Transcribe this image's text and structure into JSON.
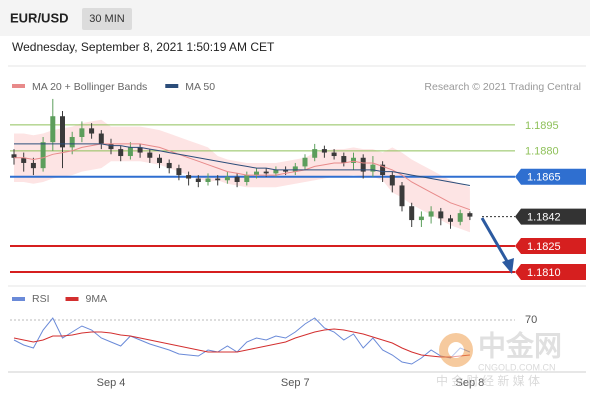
{
  "header": {
    "symbol": "EUR/USD",
    "interval": "30 MIN",
    "timestamp": "Wednesday, September 8, 2021 1:50:19 AM CET"
  },
  "chart_data": [
    {
      "type": "candlestick",
      "source": "Research © 2021 Trading Central",
      "categories": [
        null,
        null,
        null,
        null,
        null,
        null,
        null,
        null,
        null,
        null,
        "Sep 4",
        null,
        null,
        null,
        null,
        null,
        null,
        null,
        null,
        null,
        null,
        null,
        null,
        null,
        null,
        null,
        null,
        null,
        null,
        "Sep 7",
        null,
        null,
        null,
        null,
        null,
        null,
        null,
        null,
        null,
        null,
        null,
        null,
        null,
        null,
        null,
        null,
        null,
        "Sep 8"
      ],
      "open": [
        1.1878,
        1.1876,
        1.1873,
        1.187,
        1.1885,
        1.19,
        1.1882,
        1.1888,
        1.1893,
        1.189,
        1.1884,
        1.1881,
        1.1877,
        1.1882,
        1.1879,
        1.1876,
        1.1873,
        1.187,
        1.1866,
        1.1864,
        1.1862,
        1.1864,
        1.1863,
        1.1865,
        1.1862,
        1.1866,
        1.1868,
        1.1867,
        1.1869,
        1.1868,
        1.1871,
        1.1876,
        1.1881,
        1.1879,
        1.1877,
        1.1873,
        1.1876,
        1.1868,
        1.1872,
        1.1866,
        1.186,
        1.1848,
        1.184,
        1.1842,
        1.1845,
        1.1841,
        1.1839,
        1.1844
      ],
      "high": [
        1.1881,
        1.1879,
        1.1876,
        1.1888,
        1.191,
        1.1903,
        1.1891,
        1.1897,
        1.1896,
        1.1892,
        1.1887,
        1.1883,
        1.1885,
        1.1884,
        1.1881,
        1.1878,
        1.1875,
        1.1872,
        1.1868,
        1.1866,
        1.1867,
        1.1866,
        1.1868,
        1.1867,
        1.1868,
        1.187,
        1.187,
        1.1871,
        1.1871,
        1.1873,
        1.1878,
        1.1884,
        1.1883,
        1.1881,
        1.1879,
        1.1879,
        1.1878,
        1.1877,
        1.1874,
        1.1868,
        1.1862,
        1.185,
        1.1845,
        1.1848,
        1.1847,
        1.1843,
        1.1846,
        1.1845
      ],
      "low": [
        1.1872,
        1.1868,
        1.1866,
        1.1868,
        1.188,
        1.187,
        1.1878,
        1.1885,
        1.1887,
        1.1881,
        1.1878,
        1.1874,
        1.1875,
        1.1876,
        1.1873,
        1.187,
        1.1867,
        1.1863,
        1.186,
        1.1859,
        1.186,
        1.186,
        1.1861,
        1.1859,
        1.186,
        1.1864,
        1.1865,
        1.1865,
        1.1866,
        1.1866,
        1.1869,
        1.1874,
        1.1876,
        1.1875,
        1.1871,
        1.1869,
        1.1864,
        1.1865,
        1.1862,
        1.1856,
        1.1845,
        1.1836,
        1.1836,
        1.1838,
        1.1837,
        1.1835,
        1.1837,
        1.184
      ],
      "close": [
        1.1876,
        1.1873,
        1.187,
        1.1885,
        1.19,
        1.1882,
        1.1888,
        1.1893,
        1.189,
        1.1884,
        1.1881,
        1.1877,
        1.1882,
        1.1879,
        1.1876,
        1.1873,
        1.187,
        1.1866,
        1.1864,
        1.1862,
        1.1864,
        1.1863,
        1.1865,
        1.1862,
        1.1866,
        1.1868,
        1.1867,
        1.1869,
        1.1868,
        1.1871,
        1.1876,
        1.1881,
        1.1879,
        1.1877,
        1.1873,
        1.1876,
        1.1868,
        1.1872,
        1.1866,
        1.186,
        1.1848,
        1.184,
        1.1842,
        1.1845,
        1.1841,
        1.1839,
        1.1844,
        1.1842
      ],
      "up_color": "#5c9e5c",
      "down_color": "#3a3a3a",
      "series": [
        {
          "name": "MA 20 + Bollinger Bands",
          "color": "#e88a8a",
          "band_color": "#fde4e4",
          "values": [
            1.1876,
            1.1876,
            1.1875,
            1.1876,
            1.1878,
            1.1879,
            1.188,
            1.1882,
            1.1883,
            1.1884,
            1.1884,
            1.1884,
            1.1884,
            1.1884,
            1.1883,
            1.1882,
            1.188,
            1.1878,
            1.1876,
            1.1874,
            1.1872,
            1.187,
            1.1868,
            1.1867,
            1.1866,
            1.1866,
            1.1866,
            1.1866,
            1.1867,
            1.1868,
            1.1869,
            1.1871,
            1.1872,
            1.1873,
            1.1873,
            1.1874,
            1.1873,
            1.1873,
            1.1871,
            1.1869,
            1.1866,
            1.1862,
            1.1859,
            1.1856,
            1.1853,
            1.185,
            1.1848,
            1.1846
          ],
          "upper": [
            1.189,
            1.189,
            1.1889,
            1.189,
            1.1892,
            1.1893,
            1.1894,
            1.1896,
            1.1897,
            1.1898,
            1.1894,
            1.1894,
            1.1894,
            1.1894,
            1.1893,
            1.1892,
            1.189,
            1.1888,
            1.1886,
            1.1884,
            1.1882,
            1.1877,
            1.1875,
            1.1874,
            1.1873,
            1.1873,
            1.1873,
            1.1873,
            1.1874,
            1.1875,
            1.1876,
            1.1879,
            1.188,
            1.1881,
            1.1881,
            1.1882,
            1.1881,
            1.1881,
            1.1879,
            1.1882,
            1.1879,
            1.1875,
            1.1872,
            1.1869,
            1.1866,
            1.1863,
            1.1861,
            1.1859
          ],
          "lower": [
            1.1862,
            1.1862,
            1.1861,
            1.1862,
            1.1864,
            1.1865,
            1.1866,
            1.1868,
            1.1869,
            1.187,
            1.1874,
            1.1874,
            1.1874,
            1.1874,
            1.1873,
            1.1872,
            1.187,
            1.1868,
            1.1866,
            1.1864,
            1.1862,
            1.1863,
            1.1861,
            1.186,
            1.1859,
            1.1859,
            1.1859,
            1.1859,
            1.186,
            1.1861,
            1.1862,
            1.1863,
            1.1864,
            1.1865,
            1.1865,
            1.1866,
            1.1865,
            1.1865,
            1.1863,
            1.1856,
            1.1853,
            1.1849,
            1.1846,
            1.1843,
            1.184,
            1.1837,
            1.1835,
            1.1833
          ]
        },
        {
          "name": "MA 50",
          "color": "#2c4d7a",
          "values": [
            1.1884,
            1.1884,
            1.1884,
            1.1884,
            1.1884,
            1.1884,
            1.1884,
            1.1884,
            1.1884,
            1.1884,
            1.1883,
            1.1883,
            1.1882,
            1.1882,
            1.1881,
            1.188,
            1.1879,
            1.1878,
            1.1877,
            1.1876,
            1.1875,
            1.1874,
            1.1873,
            1.1872,
            1.1871,
            1.187,
            1.187,
            1.1869,
            1.1869,
            1.1869,
            1.1869,
            1.1869,
            1.1869,
            1.1869,
            1.1869,
            1.1869,
            1.1869,
            1.1869,
            1.1868,
            1.1868,
            1.1867,
            1.1866,
            1.1865,
            1.1864,
            1.1863,
            1.1862,
            1.1861,
            1.186
          ]
        }
      ],
      "ylim": [
        1.18,
        1.193
      ],
      "levels": [
        {
          "value": 1.1895,
          "label": "1.1895",
          "color": "#8fc15a",
          "boxed": false,
          "style": "solid"
        },
        {
          "value": 1.188,
          "label": "1.1880",
          "color": "#8fc15a",
          "boxed": false,
          "style": "solid"
        },
        {
          "value": 1.1865,
          "label": "1.1865",
          "color": "#2f6fd0",
          "boxed": true,
          "style": "solid"
        },
        {
          "value": 1.1842,
          "label": "1.1842",
          "color": "#333333",
          "boxed": true,
          "style": "dotted"
        },
        {
          "value": 1.1825,
          "label": "1.1825",
          "color": "#d61f1f",
          "boxed": true,
          "style": "solid"
        },
        {
          "value": 1.181,
          "label": "1.1810",
          "color": "#d61f1f",
          "boxed": true,
          "style": "solid"
        }
      ]
    },
    {
      "type": "line",
      "series": [
        {
          "name": "RSI",
          "color": "#6a8ad8",
          "values": [
            50,
            45,
            42,
            60,
            72,
            52,
            58,
            64,
            60,
            52,
            48,
            44,
            54,
            50,
            46,
            43,
            40,
            36,
            35,
            34,
            40,
            38,
            44,
            38,
            48,
            52,
            50,
            54,
            52,
            58,
            66,
            72,
            62,
            58,
            50,
            56,
            42,
            52,
            40,
            35,
            28,
            26,
            32,
            40,
            34,
            32,
            42,
            38
          ]
        },
        {
          "name": "9MA",
          "color": "#d32f2f",
          "values": [
            52,
            50,
            48,
            50,
            54,
            54,
            55,
            57,
            58,
            58,
            57,
            55,
            54,
            52,
            50,
            48,
            46,
            44,
            42,
            40,
            38,
            38,
            38,
            38,
            40,
            42,
            44,
            46,
            48,
            52,
            55,
            58,
            60,
            61,
            60,
            58,
            56,
            53,
            50,
            47,
            42,
            38,
            35,
            34,
            33,
            33,
            34,
            35
          ]
        }
      ],
      "ylim": [
        20,
        90
      ],
      "yticks": [
        70
      ],
      "grid": true
    }
  ],
  "watermark": {
    "name": "中金网",
    "domain": "CNGOLD.COM.CN",
    "slogan": "中 金 财 经 新 媒 体"
  }
}
